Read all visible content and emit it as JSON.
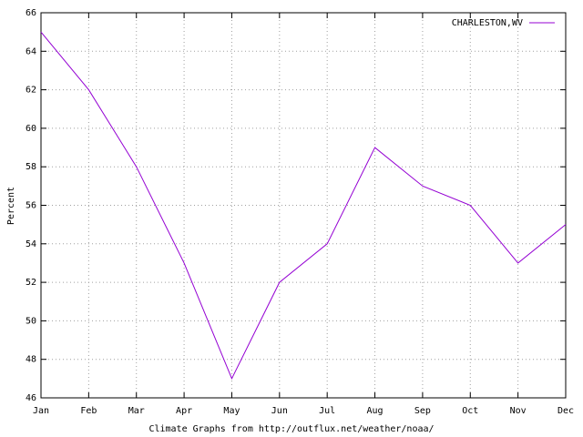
{
  "chart_data": {
    "type": "line",
    "x_label": "Climate Graphs from http://outflux.net/weather/noaa/",
    "y_label": "Percent",
    "categories": [
      "Jan",
      "Feb",
      "Mar",
      "Apr",
      "May",
      "Jun",
      "Jul",
      "Aug",
      "Sep",
      "Oct",
      "Nov",
      "Dec"
    ],
    "series": [
      {
        "name": "CHARLESTON,WV",
        "color": "#9400d3",
        "values": [
          65,
          62,
          58,
          53,
          47,
          52,
          54,
          59,
          57,
          56,
          53,
          55
        ]
      }
    ],
    "ylim": [
      46,
      66
    ],
    "yticks": [
      46,
      48,
      50,
      52,
      54,
      56,
      58,
      60,
      62,
      64,
      66
    ],
    "grid": true,
    "legend": "top-right"
  }
}
